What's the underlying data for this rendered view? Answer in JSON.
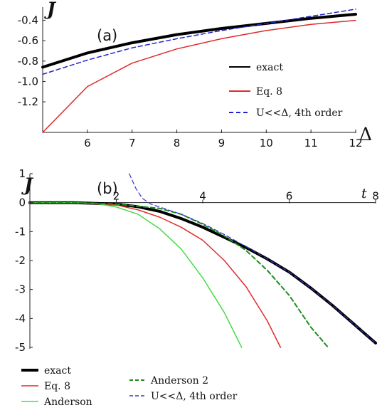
{
  "chart_data": [
    {
      "type": "line",
      "panel_label": "(a)",
      "xlabel": "Δ",
      "ylabel": "J",
      "xlim": [
        5,
        12
      ],
      "ylim": [
        -1.5,
        -0.27
      ],
      "xticks": [
        6,
        7,
        8,
        9,
        10,
        11,
        12
      ],
      "yticks": [
        -0.4,
        -0.6,
        -0.8,
        -1.0,
        -1.2
      ],
      "ytick_labels": [
        "-0.4",
        "-0.6",
        "-0.8",
        "-1.0",
        "-1.2"
      ],
      "legend_position": "bottom-right",
      "series": [
        {
          "name": "exact",
          "color": "#000000",
          "dash": "solid",
          "x": [
            5,
            6,
            7,
            8,
            9,
            10,
            11,
            12
          ],
          "y": [
            -0.86,
            -0.72,
            -0.62,
            -0.54,
            -0.48,
            -0.43,
            -0.38,
            -0.34
          ]
        },
        {
          "name": "Eq. 8",
          "color": "#e0292b",
          "dash": "solid",
          "x": [
            5,
            6,
            7,
            8,
            9,
            10,
            11,
            12
          ],
          "y": [
            -1.5,
            -1.05,
            -0.82,
            -0.68,
            -0.58,
            -0.5,
            -0.44,
            -0.4
          ]
        },
        {
          "name": "U<<Δ, 4th order",
          "color": "#2222cc",
          "dash": "dashed",
          "x": [
            5,
            6,
            7,
            8,
            9,
            10,
            11,
            12
          ],
          "y": [
            -0.93,
            -0.79,
            -0.67,
            -0.58,
            -0.5,
            -0.43,
            -0.36,
            -0.29
          ]
        }
      ]
    },
    {
      "type": "line",
      "panel_label": "(b)",
      "xlabel": "t",
      "ylabel": "J",
      "xlim": [
        0,
        8
      ],
      "ylim": [
        -5.05,
        1.0
      ],
      "xticks": [
        2,
        4,
        6,
        8
      ],
      "yticks": [
        1,
        0,
        -1,
        -2,
        -3,
        -4,
        -5
      ],
      "legend_position": "bottom",
      "series": [
        {
          "name": "exact",
          "color": "#000000",
          "dash": "solid",
          "x": [
            0,
            1,
            2,
            2.5,
            3,
            3.5,
            4,
            4.5,
            5,
            5.5,
            6,
            6.5,
            7,
            7.5,
            8
          ],
          "y": [
            0,
            0,
            -0.05,
            -0.14,
            -0.3,
            -0.55,
            -0.85,
            -1.2,
            -1.55,
            -1.95,
            -2.4,
            -2.95,
            -3.55,
            -4.2,
            -4.85
          ]
        },
        {
          "name": "Eq. 8",
          "color": "#e0292b",
          "dash": "solid",
          "x": [
            0,
            1,
            2,
            2.5,
            3,
            3.5,
            4,
            4.5,
            5,
            5.5,
            5.8
          ],
          "y": [
            0,
            0,
            -0.08,
            -0.25,
            -0.5,
            -0.85,
            -1.3,
            -2.0,
            -2.9,
            -4.1,
            -5.0
          ]
        },
        {
          "name": "Anderson",
          "color": "#44dd44",
          "dash": "solid",
          "x": [
            0,
            1,
            1.5,
            2,
            2.5,
            3,
            3.5,
            4,
            4.5,
            4.9
          ],
          "y": [
            0,
            0,
            -0.02,
            -0.15,
            -0.4,
            -0.9,
            -1.6,
            -2.6,
            -3.8,
            -5.0
          ]
        },
        {
          "name": "Anderson 2",
          "color": "#1e8c1e",
          "dash": "dashed",
          "x": [
            0,
            1,
            2,
            3,
            3.5,
            4,
            4.5,
            5,
            5.5,
            6,
            6.5,
            6.9
          ],
          "y": [
            0,
            0,
            -0.05,
            -0.2,
            -0.4,
            -0.75,
            -1.15,
            -1.65,
            -2.35,
            -3.2,
            -4.3,
            -5.0
          ]
        },
        {
          "name": "U<<Δ, 4th order",
          "color": "#3333cc",
          "dash": "dashed",
          "x": [
            2.3,
            2.45,
            2.6,
            2.8,
            3.0,
            3.5,
            4,
            4.5,
            5,
            5.5,
            6,
            6.5,
            7,
            7.5,
            8
          ],
          "y": [
            1.0,
            0.5,
            0.15,
            -0.05,
            -0.15,
            -0.4,
            -0.72,
            -1.1,
            -1.52,
            -1.95,
            -2.4,
            -2.95,
            -3.55,
            -4.2,
            -4.85
          ]
        }
      ]
    }
  ]
}
